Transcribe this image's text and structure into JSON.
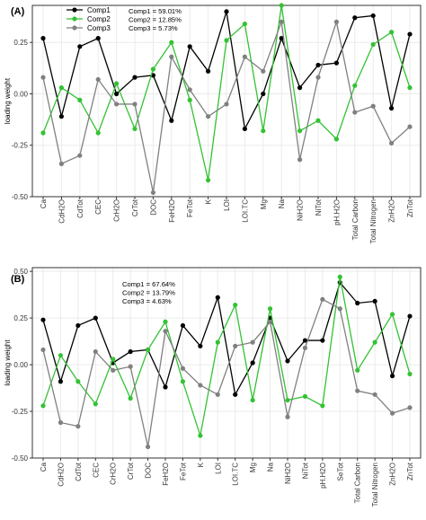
{
  "figure": {
    "colors": {
      "comp1": "#000000",
      "comp2": "#33c233",
      "comp3": "#808080"
    },
    "ylabel": "loading weight"
  },
  "chart_data": [
    {
      "type": "line",
      "panel_label": "(A)",
      "ylabel": "loading weight",
      "ylim": [
        -0.5,
        0.43
      ],
      "yticks": [
        -0.5,
        -0.25,
        0.0,
        0.25
      ],
      "ytick_labels": [
        "-0.50",
        "-0.25",
        "0.00",
        "0.25"
      ],
      "grid": true,
      "legend_position": "top-left",
      "categories": [
        "Ca",
        "CdH2O",
        "CdTot",
        "CEC",
        "CrH2O",
        "CrTot",
        "DOC",
        "FeH2O",
        "FeTot",
        "K",
        "LOI",
        "LOI.TC",
        "Mg",
        "Na",
        "NiH2O",
        "NiTot",
        "pH.H2O",
        "Total Carbon",
        "Total Nitrogen",
        "ZnH2O",
        "ZnTot"
      ],
      "series": [
        {
          "name": "Comp1",
          "values": [
            0.27,
            -0.11,
            0.23,
            0.27,
            0.0,
            0.08,
            0.09,
            -0.13,
            0.23,
            0.11,
            0.4,
            -0.17,
            0.0,
            0.27,
            0.03,
            0.14,
            0.15,
            0.37,
            0.38,
            -0.07,
            0.29
          ]
        },
        {
          "name": "Comp2",
          "values": [
            -0.19,
            0.03,
            -0.03,
            -0.19,
            0.05,
            -0.17,
            0.12,
            0.25,
            -0.03,
            -0.42,
            0.26,
            0.34,
            -0.18,
            0.43,
            -0.18,
            -0.13,
            -0.22,
            0.04,
            0.24,
            0.3,
            0.03
          ]
        },
        {
          "name": "Comp3",
          "values": [
            0.08,
            -0.34,
            -0.3,
            0.07,
            -0.05,
            -0.05,
            -0.48,
            0.18,
            0.02,
            -0.11,
            -0.05,
            0.18,
            0.11,
            0.35,
            -0.32,
            0.08,
            0.35,
            -0.09,
            -0.06,
            -0.24,
            -0.16
          ]
        }
      ],
      "annotations": [
        "Comp1 = 59.01%",
        "Comp2 = 12.85%",
        "Comp3 = 5.73%"
      ]
    },
    {
      "type": "line",
      "panel_label": "(B)",
      "ylabel": "loading weight",
      "ylim": [
        -0.5,
        0.52
      ],
      "yticks": [
        -0.5,
        -0.25,
        0.0,
        0.25,
        0.5
      ],
      "ytick_labels": [
        "-0.50",
        "-0.25",
        "0.00",
        "0.25",
        "0.50"
      ],
      "grid": true,
      "legend_position": "none",
      "categories": [
        "Ca",
        "CdH2O",
        "CdTot",
        "CEC",
        "CrH2O",
        "CrTot",
        "DOC",
        "FeH2O",
        "FeTot",
        "K",
        "LOI",
        "LOI.TC",
        "Mg",
        "Na",
        "NiH2O",
        "NiTot",
        "pH.H2O",
        "SeTot",
        "Total Carbon",
        "Total Nitrogen",
        "ZnH2O",
        "ZnTot"
      ],
      "series": [
        {
          "name": "Comp1",
          "values": [
            0.24,
            -0.09,
            0.21,
            0.25,
            0.01,
            0.07,
            0.08,
            -0.12,
            0.21,
            0.1,
            0.36,
            -0.16,
            0.01,
            0.25,
            0.02,
            0.13,
            0.13,
            0.44,
            0.33,
            0.34,
            -0.06,
            0.26
          ]
        },
        {
          "name": "Comp2",
          "values": [
            -0.22,
            0.05,
            -0.09,
            -0.21,
            0.03,
            -0.18,
            0.08,
            0.23,
            -0.09,
            -0.38,
            0.12,
            0.32,
            -0.19,
            0.3,
            -0.19,
            -0.17,
            -0.22,
            0.47,
            -0.03,
            0.12,
            0.27,
            -0.05
          ]
        },
        {
          "name": "Comp3",
          "values": [
            0.08,
            -0.31,
            -0.33,
            0.07,
            -0.03,
            -0.01,
            -0.44,
            0.18,
            -0.02,
            -0.11,
            -0.16,
            0.1,
            0.12,
            0.23,
            -0.28,
            0.09,
            0.35,
            0.3,
            -0.14,
            -0.16,
            -0.26,
            -0.23
          ]
        }
      ],
      "annotations": [
        "Comp1 = 67.64%",
        "Comp2 = 13.79%",
        "Comp3 = 4.63%"
      ]
    }
  ]
}
